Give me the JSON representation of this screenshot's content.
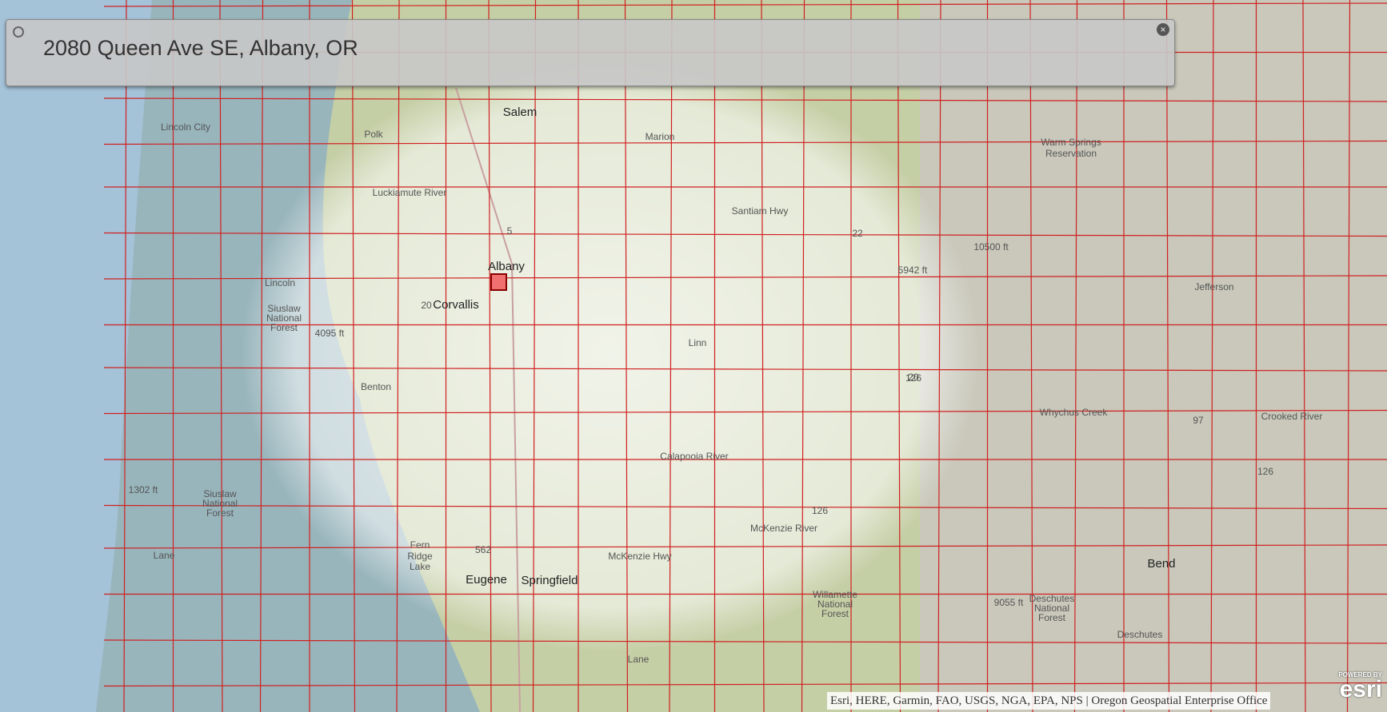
{
  "search": {
    "query": "2080 Queen Ave SE, Albany, OR"
  },
  "labels": [
    "Salem",
    "Lincoln City",
    "Polk",
    "Marion",
    "Warm Springs",
    "Reservation",
    "Luckiamute River",
    "Albany",
    "Corvallis",
    "Lincoln",
    "Siuslaw",
    "National",
    "Forest",
    "4095 ft",
    "Linn",
    "5942 ft",
    "10500 ft",
    "Jefferson",
    "Benton",
    "Calapooia River",
    "Whychus Creek",
    "Crooked River",
    "1302 ft",
    "Siuslaw",
    "National",
    "Forest",
    "Lane",
    "Fern",
    "Ridge",
    "Lake",
    "Eugene",
    "Springfield",
    "McKenzie Hwy",
    "Willamette",
    "National",
    "Forest",
    "9055 ft",
    "Deschutes",
    "National",
    "Forest",
    "Bend",
    "Deschutes",
    "Lane",
    "Santiam Hwy",
    "McKenzie River",
    "5",
    "20",
    "22",
    "20",
    "126",
    "126",
    "97",
    "126",
    "562"
  ],
  "attribution": "Esri, HERE, Garmin, FAO, USGS, NGA, EPA, NPS | Oregon Geospatial Enterprise Office",
  "logo": {
    "top": "POWERED BY",
    "brand": "esri"
  }
}
